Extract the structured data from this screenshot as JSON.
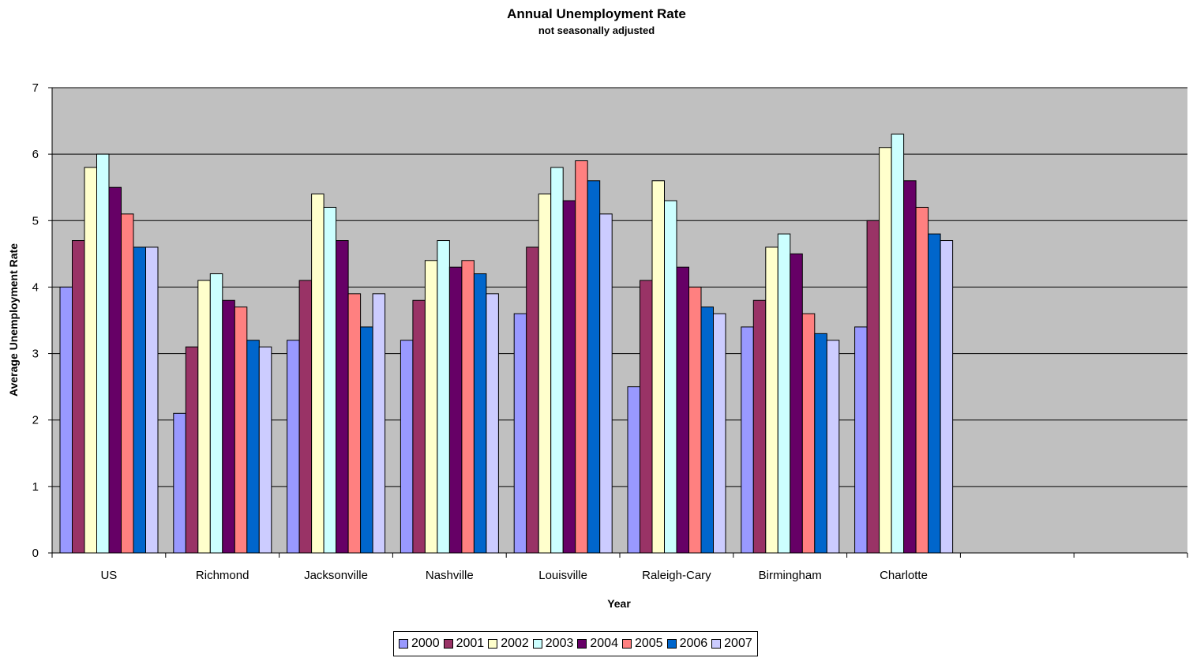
{
  "chart_data": {
    "type": "bar",
    "title": "Annual Unemployment Rate",
    "subtitle": "not seasonally adjusted",
    "xlabel": "Year",
    "ylabel": "Average Unemployment Rate",
    "ylim": [
      0,
      7
    ],
    "yticks": [
      0,
      1,
      2,
      3,
      4,
      5,
      6,
      7
    ],
    "grid": true,
    "legend_position": "bottom",
    "categories": [
      "US",
      "Richmond",
      "Jacksonville",
      "Nashville",
      "Louisville",
      "Raleigh-Cary",
      "Birmingham",
      "Charlotte",
      "",
      ""
    ],
    "series": [
      {
        "name": "2000",
        "color": "#9999ff",
        "values": [
          4.0,
          2.1,
          3.2,
          3.2,
          3.6,
          2.5,
          3.4,
          3.4,
          null,
          null
        ]
      },
      {
        "name": "2001",
        "color": "#993366",
        "values": [
          4.7,
          3.1,
          4.1,
          3.8,
          4.6,
          4.1,
          3.8,
          5.0,
          null,
          null
        ]
      },
      {
        "name": "2002",
        "color": "#ffffcc",
        "values": [
          5.8,
          4.1,
          5.4,
          4.4,
          5.4,
          5.6,
          4.6,
          6.1,
          null,
          null
        ]
      },
      {
        "name": "2003",
        "color": "#ccffff",
        "values": [
          6.0,
          4.2,
          5.2,
          4.7,
          5.8,
          5.3,
          4.8,
          6.3,
          null,
          null
        ]
      },
      {
        "name": "2004",
        "color": "#660066",
        "values": [
          5.5,
          3.8,
          4.7,
          4.3,
          5.3,
          4.3,
          4.5,
          5.6,
          null,
          null
        ]
      },
      {
        "name": "2005",
        "color": "#ff8080",
        "values": [
          5.1,
          3.7,
          3.9,
          4.4,
          5.9,
          4.0,
          3.6,
          5.2,
          null,
          null
        ]
      },
      {
        "name": "2006",
        "color": "#0066cc",
        "values": [
          4.6,
          3.2,
          3.4,
          4.2,
          5.6,
          3.7,
          3.3,
          4.8,
          null,
          null
        ]
      },
      {
        "name": "2007",
        "color": "#ccccff",
        "values": [
          4.6,
          3.1,
          3.9,
          3.9,
          5.1,
          3.6,
          3.2,
          4.7,
          null,
          null
        ]
      }
    ],
    "plot_background": "#c0c0c0"
  }
}
